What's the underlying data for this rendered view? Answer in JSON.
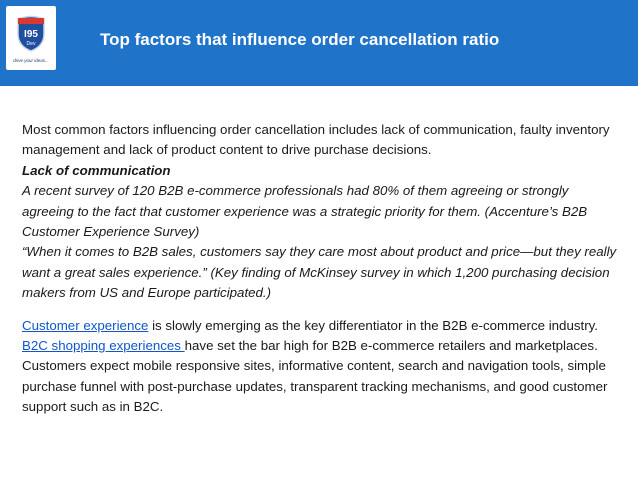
{
  "header": {
    "title": "Top factors that influence order cancellation ratio",
    "logo": {
      "number": "I95",
      "sub": "Dev",
      "tagline": "drive your ideas..."
    }
  },
  "content": {
    "intro": "Most common factors influencing order cancellation includes lack of communication, faulty inventory management and lack of product content to drive purchase decisions.",
    "lack_heading": "Lack of communication",
    "survey_quote": "A recent survey of 120 B2B e-commerce professionals had 80% of them agreeing or strongly agreeing to the fact that customer experience was a strategic priority for them. (Accenture’s B2B Customer Experience Survey)",
    "mckinsey_quote": "“When it comes to B2B sales, customers say they care most about product and price—but they really want a great sales experience.” (Key finding of McKinsey survey in which 1,200 purchasing decision makers from US and Europe participated.)",
    "cx_link": "Customer experience",
    "cx_text": " is slowly emerging as the key differentiator in the B2B e-commerce industry.",
    "b2c_link": "B2C shopping experiences ",
    "b2c_text": "have set the bar high for B2B e-commerce retailers and marketplaces. Customers expect mobile responsive sites, informative content, search and navigation tools, simple purchase funnel with post-purchase updates, transparent tracking mechanisms, and good customer support such as in B2C."
  }
}
